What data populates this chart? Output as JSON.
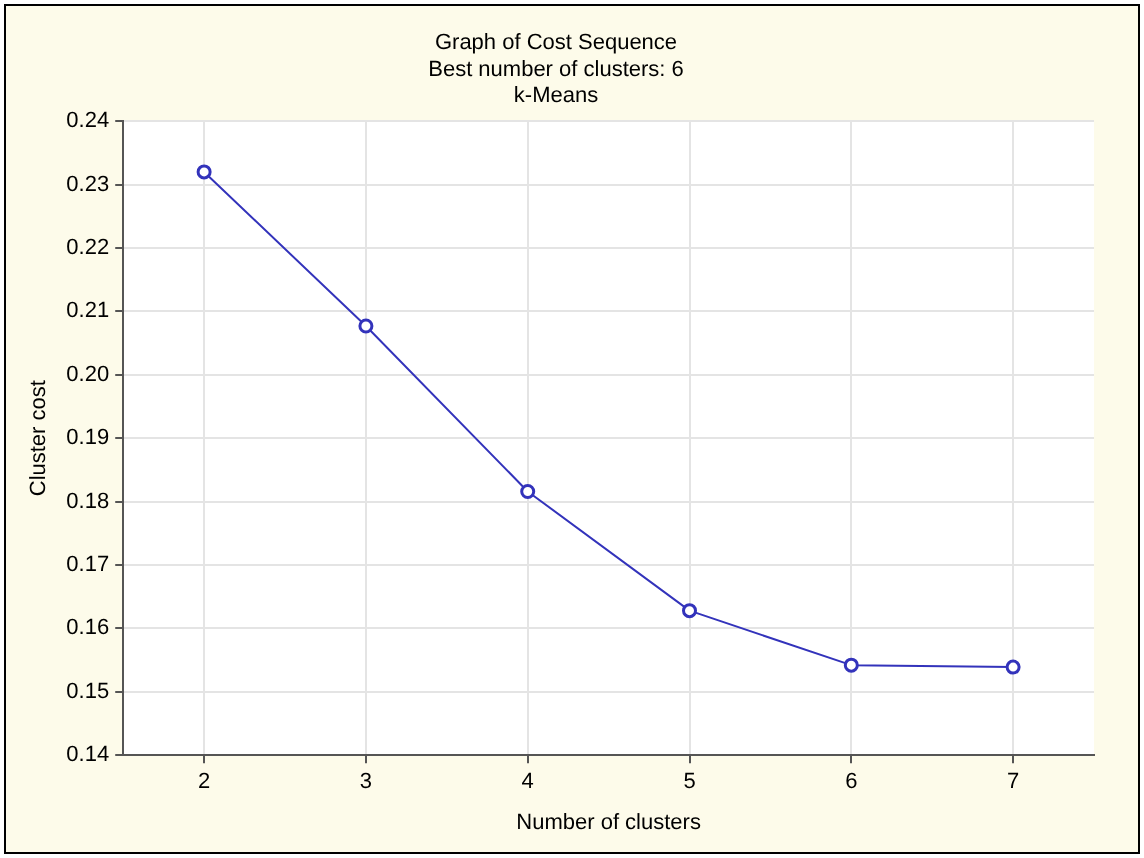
{
  "chart_data": {
    "type": "line",
    "title": "Graph of Cost Sequence",
    "subtitle": "Best number of clusters: 6\nk-Means",
    "xlabel": "Number of clusters",
    "ylabel": "Cluster cost",
    "x": [
      2,
      3,
      4,
      5,
      6,
      7
    ],
    "series": [
      {
        "color": "#3333bb",
        "values": [
          0.232,
          0.2077,
          0.1816,
          0.1628,
          0.1542,
          0.1539
        ]
      }
    ],
    "xlim": [
      1.5,
      7.5
    ],
    "xticks": [
      2,
      3,
      4,
      5,
      6,
      7
    ],
    "ylim": [
      0.14,
      0.24
    ],
    "yticks": [
      0.14,
      0.15,
      0.16,
      0.17,
      0.18,
      0.19,
      {
        "value": 0.2,
        "label": "0.20"
      },
      0.21,
      0.22,
      0.23,
      0.24
    ],
    "grid": true,
    "legend": false,
    "marker": "circle",
    "line_style": "solid"
  }
}
